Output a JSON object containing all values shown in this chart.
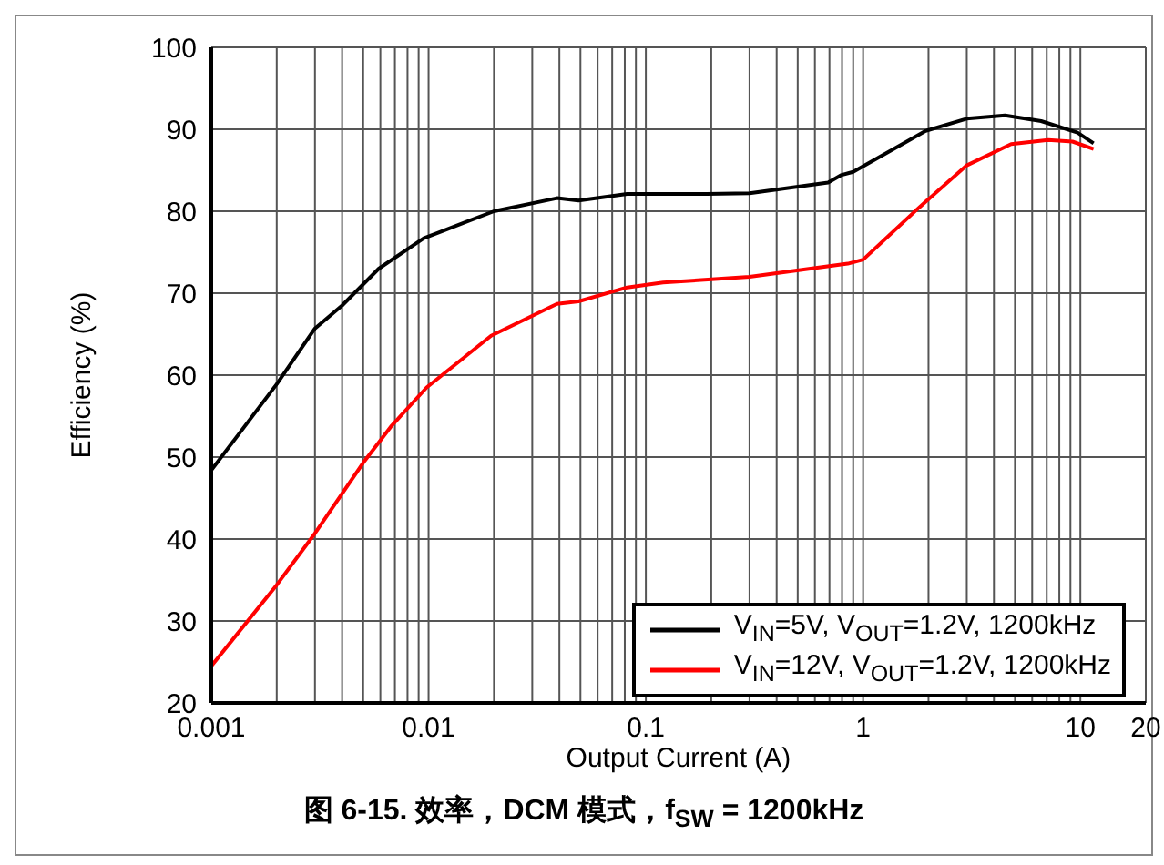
{
  "chart_data": {
    "type": "line",
    "title": "图 6-15. 效率，DCM 模式，f$_{SW}$ = 1200kHz",
    "xlabel": "Output Current (A)",
    "ylabel": "Efficiency (%)",
    "log": "x",
    "grid": true,
    "legend": "bottom right",
    "marker": "none",
    "line_style": "solid",
    "xlim": [
      0.001,
      20
    ],
    "xticks": [
      0.001,
      {
        "value": 0.002,
        "label": null
      },
      {
        "value": 0.003,
        "label": null
      },
      {
        "value": 0.004,
        "label": null
      },
      {
        "value": 0.005,
        "label": null
      },
      {
        "value": 0.006,
        "label": null
      },
      {
        "value": 0.007,
        "label": null
      },
      {
        "value": 0.008,
        "label": null
      },
      {
        "value": 0.009,
        "label": null
      },
      0.01,
      {
        "value": 0.02,
        "label": null
      },
      {
        "value": 0.03,
        "label": null
      },
      {
        "value": 0.04,
        "label": null
      },
      {
        "value": 0.05,
        "label": null
      },
      {
        "value": 0.06,
        "label": null
      },
      {
        "value": 0.07,
        "label": null
      },
      {
        "value": 0.08,
        "label": null
      },
      {
        "value": 0.09,
        "label": null
      },
      0.1,
      {
        "value": 0.2,
        "label": null
      },
      {
        "value": 0.3,
        "label": null
      },
      {
        "value": 0.4,
        "label": null
      },
      {
        "value": 0.5,
        "label": null
      },
      {
        "value": 0.6,
        "label": null
      },
      {
        "value": 0.7,
        "label": null
      },
      {
        "value": 0.8,
        "label": null
      },
      {
        "value": 0.9,
        "label": null
      },
      1,
      {
        "value": 2,
        "label": null
      },
      {
        "value": 3,
        "label": null
      },
      {
        "value": 4,
        "label": null
      },
      {
        "value": 5,
        "label": null
      },
      {
        "value": 6,
        "label": null
      },
      {
        "value": 7,
        "label": null
      },
      {
        "value": 8,
        "label": null
      },
      {
        "value": 9,
        "label": null
      },
      10,
      20
    ],
    "ylim": [
      20,
      100
    ],
    "yticks": [
      20,
      30,
      40,
      50,
      60,
      70,
      80,
      90,
      100
    ],
    "series": [
      {
        "name": "V$_{IN}$=5V, V$_{OUT}$=1.2V, 1200kHz",
        "color": "#000000",
        "x": [
          0.001,
          0.002,
          0.003,
          0.004,
          0.0059,
          0.0095,
          0.02,
          0.039,
          0.049,
          0.082,
          0.12,
          0.19,
          0.3,
          0.69,
          0.79,
          0.9,
          1.94,
          3.0,
          4.5,
          6.6,
          9.7,
          11.5
        ],
        "values": [
          48.4,
          58.9,
          65.7,
          68.5,
          73,
          76.7,
          80,
          81.6,
          81.3,
          82.1,
          82.1,
          82.1,
          82.2,
          83.5,
          84.4,
          84.8,
          89.8,
          91.3,
          91.7,
          91,
          89.6,
          88.3
        ]
      },
      {
        "name": "V$_{IN}$=12V, V$_{OUT}$=1.2V, 1200kHz",
        "color": "#ff0000",
        "x": [
          0.001,
          0.002,
          0.003,
          0.005,
          0.0067,
          0.0098,
          0.0194,
          0.039,
          0.049,
          0.082,
          0.12,
          0.3,
          0.85,
          1.0,
          1.8,
          3.0,
          4.8,
          7.1,
          9.2,
          11.5
        ],
        "values": [
          24.5,
          34.4,
          40.7,
          49.3,
          53.7,
          58.5,
          64.8,
          68.7,
          69,
          70.7,
          71.3,
          72,
          73.6,
          74.1,
          80.4,
          85.6,
          88.2,
          88.7,
          88.5,
          87.6
        ]
      }
    ]
  }
}
